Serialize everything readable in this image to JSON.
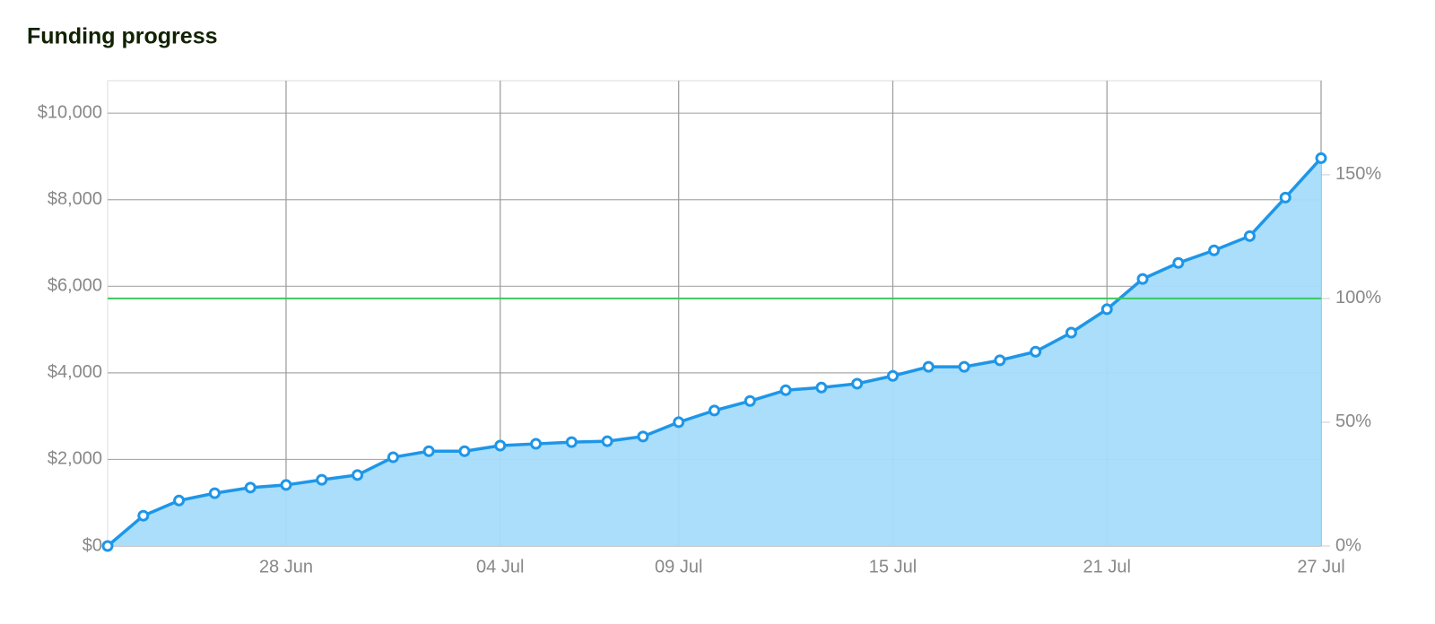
{
  "chart_data": {
    "type": "area",
    "title": "Funding progress",
    "categories": [
      null,
      null,
      null,
      null,
      null,
      "28 Jun",
      null,
      null,
      null,
      null,
      null,
      "04 Jul",
      null,
      null,
      null,
      null,
      "09 Jul",
      null,
      null,
      null,
      null,
      null,
      "15 Jul",
      null,
      null,
      null,
      null,
      null,
      "21 Jul",
      null,
      null,
      null,
      null,
      null,
      "27 Jul"
    ],
    "series": [
      {
        "color": "#1e96e8",
        "values": [
          0,
          700,
          1050,
          1220,
          1350,
          1410,
          1530,
          1640,
          2050,
          2190,
          2190,
          2320,
          2360,
          2400,
          2420,
          2530,
          2860,
          3130,
          3350,
          3600,
          3660,
          3750,
          3930,
          4140,
          4140,
          4290,
          4490,
          4930,
          5470,
          6170,
          6540,
          6830,
          7160,
          8050,
          8960
        ]
      }
    ],
    "fill": "#a5dcfa",
    "ylim": [
      0,
      10750
    ],
    "yticks": [
      {
        "value": 0,
        "label": "$0"
      },
      {
        "value": 2000,
        "label": "$2,000"
      },
      {
        "value": 4000,
        "label": "$4,000"
      },
      {
        "value": 6000,
        "label": "$6,000"
      },
      {
        "value": 8000,
        "label": "$8,000"
      },
      {
        "value": 10000,
        "label": "$10,000"
      }
    ],
    "y2lim": [
      0,
      188
    ],
    "y2ticks": [
      {
        "value": 0,
        "label": "0%"
      },
      {
        "value": 50,
        "label": "50%"
      },
      {
        "value": 100,
        "label": "100%"
      },
      {
        "value": 150,
        "label": "150%"
      }
    ],
    "reference_line": {
      "axis": "y2",
      "value": 100,
      "color": "#3cc860"
    },
    "grid": true
  }
}
